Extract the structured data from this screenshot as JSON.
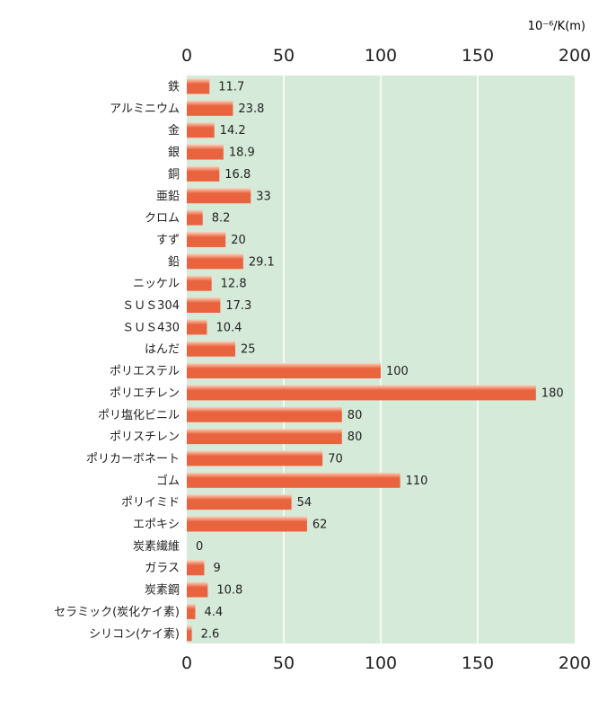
{
  "chart_data": {
    "type": "bar",
    "orientation": "horizontal",
    "unit_label": "10⁻⁶/K(m)",
    "xlim": [
      0,
      200
    ],
    "ticks": [
      0,
      50,
      100,
      150,
      200
    ],
    "grid": true,
    "colors": {
      "plot_bg": "#d5ead8",
      "bar": "#e9643e",
      "bar_light": "#fbd2be",
      "grid": "#ffffff"
    },
    "categories": [
      "鉄",
      "アルミニウム",
      "金",
      "銀",
      "銅",
      "亜鉛",
      "クロム",
      "すず",
      "鉛",
      "ニッケル",
      "ＳＵＳ304",
      "ＳＵＳ430",
      "はんだ",
      "ポリエステル",
      "ポリエチレン",
      "ポリ塩化ビニル",
      "ポリスチレン",
      "ポリカーボネート",
      "ゴム",
      "ポリイミド",
      "エポキシ",
      "炭素繊維",
      "ガラス",
      "炭素鋼",
      "セラミック(炭化ケイ素)",
      "シリコン(ケイ素)"
    ],
    "values": [
      11.7,
      23.8,
      14.2,
      18.9,
      16.8,
      33,
      8.2,
      20,
      29.1,
      12.8,
      17.3,
      10.4,
      25,
      100,
      180,
      80,
      80,
      70,
      110,
      54,
      62,
      0,
      9,
      10.8,
      4.4,
      2.6
    ],
    "value_labels": [
      "11.7",
      "23.8",
      "14.2",
      "18.9",
      "16.8",
      "33",
      "8.2",
      "20",
      "29.1",
      "12.8",
      "17.3",
      "10.4",
      "25",
      "100",
      "180",
      "80",
      "80",
      "70",
      "110",
      "54",
      "62",
      "0",
      "9",
      "10.8",
      "4.4",
      "2.6"
    ]
  }
}
